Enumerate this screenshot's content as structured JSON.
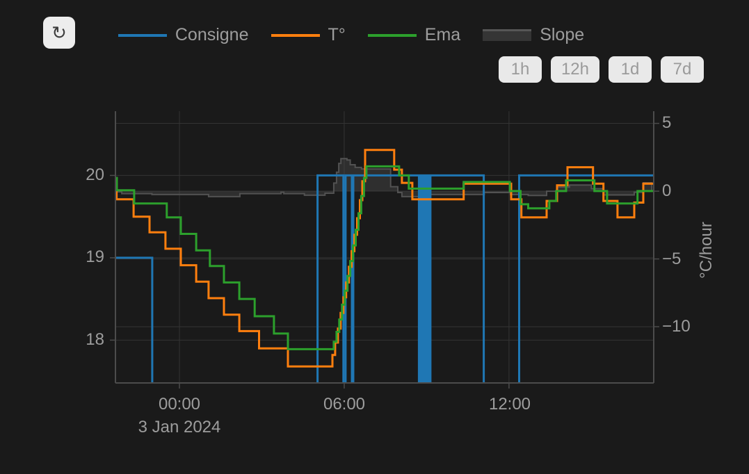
{
  "toolbar": {
    "refresh_icon": "↻"
  },
  "legend": {
    "items": [
      {
        "label": "Consigne",
        "color": "#1f77b4",
        "type": "line",
        "swatch_style": "width:70px;height:4px;background:#1f77b4"
      },
      {
        "label": "T°",
        "color": "#ff7f0e",
        "type": "line",
        "swatch_style": "width:70px;height:4px;background:#ff7f0e"
      },
      {
        "label": "Ema",
        "color": "#2ca02c",
        "type": "line",
        "swatch_style": "width:70px;height:4px;background:#2ca02c"
      },
      {
        "label": "Slope",
        "color": "#565656",
        "type": "area",
        "swatch_style": "width:70px;height:14px;background:#353535;border-top:3px solid #565656"
      }
    ]
  },
  "range_buttons": [
    {
      "label": "1h"
    },
    {
      "label": "12h"
    },
    {
      "label": "1d"
    },
    {
      "label": "7d"
    }
  ],
  "chart_data": {
    "type": "line",
    "description": "Thermostat history: setpoint (Consigne), temperature (T°), exponential moving average (Ema) on left °C axis; heating/cooling rate (Slope) as filled area on right °C/hour axis. Step (hv) interpolation.",
    "layout": {
      "plot": {
        "l": 166,
        "t": 160,
        "r": 940,
        "b": 551
      },
      "grid_color": "#343434",
      "axis_color": "#4c4c4c",
      "background": "#1a1a1a",
      "legend_position": "top-center"
    },
    "x_axis": {
      "range": [
        -2.33,
        17.27
      ],
      "unit": "hours from 2024-01-03 00:00",
      "date_label": "3 Jan 2024",
      "ticks": [
        {
          "t": 0,
          "label": "00:00"
        },
        {
          "t": 6,
          "label": "06:00"
        },
        {
          "t": 12,
          "label": "12:00"
        }
      ]
    },
    "y_left": {
      "range": [
        17.48,
        20.78
      ],
      "unit": "°C",
      "ticks": [
        {
          "v": 20,
          "label": "20"
        },
        {
          "v": 19,
          "label": "19"
        },
        {
          "v": 18,
          "label": "18"
        }
      ]
    },
    "y_right": {
      "range": [
        -14.15,
        5.9
      ],
      "title": "°C/hour",
      "ticks": [
        {
          "v": 5,
          "label": "5"
        },
        {
          "v": 0,
          "label": "0"
        },
        {
          "v": -5,
          "label": "−5"
        },
        {
          "v": -10,
          "label": "−10"
        }
      ]
    },
    "series": [
      {
        "name": "Consigne",
        "axis": "left",
        "color": "#1f77b4",
        "width": 3,
        "mode": "steps",
        "points": [
          [
            -2.33,
            19.0
          ],
          [
            -0.99,
            17.0
          ],
          [
            5.03,
            20.0
          ],
          [
            5.97,
            17.0
          ],
          [
            6.05,
            20.0
          ],
          [
            6.28,
            17.0
          ],
          [
            6.33,
            20.0
          ],
          [
            8.72,
            17.0
          ],
          [
            8.76,
            20.0
          ],
          [
            8.82,
            17.0
          ],
          [
            8.86,
            20.0
          ],
          [
            8.92,
            17.0
          ],
          [
            8.96,
            20.0
          ],
          [
            9.01,
            17.0
          ],
          [
            9.05,
            20.0
          ],
          [
            9.1,
            17.0
          ],
          [
            9.14,
            20.0
          ],
          [
            11.08,
            17.0
          ],
          [
            12.37,
            20.0
          ]
        ]
      },
      {
        "name": "T°",
        "axis": "left",
        "color": "#ff7f0e",
        "width": 3,
        "mode": "steps",
        "points": [
          [
            -2.33,
            19.92
          ],
          [
            -2.29,
            19.71
          ],
          [
            -1.67,
            19.5
          ],
          [
            -1.09,
            19.31
          ],
          [
            -0.51,
            19.11
          ],
          [
            0.05,
            18.91
          ],
          [
            0.61,
            18.71
          ],
          [
            1.06,
            18.51
          ],
          [
            1.62,
            18.31
          ],
          [
            2.18,
            18.11
          ],
          [
            2.9,
            17.9
          ],
          [
            3.95,
            17.68
          ],
          [
            5.57,
            17.82
          ],
          [
            5.67,
            17.97
          ],
          [
            5.77,
            18.14
          ],
          [
            5.87,
            18.33
          ],
          [
            5.97,
            18.52
          ],
          [
            6.07,
            18.7
          ],
          [
            6.17,
            18.89
          ],
          [
            6.27,
            19.08
          ],
          [
            6.37,
            19.28
          ],
          [
            6.47,
            19.48
          ],
          [
            6.57,
            19.7
          ],
          [
            6.66,
            19.93
          ],
          [
            6.76,
            20.31
          ],
          [
            7.82,
            20.07
          ],
          [
            8.1,
            19.91
          ],
          [
            8.48,
            19.71
          ],
          [
            10.35,
            19.9
          ],
          [
            12.08,
            19.71
          ],
          [
            12.45,
            19.49
          ],
          [
            13.37,
            19.69
          ],
          [
            13.75,
            19.88
          ],
          [
            14.13,
            20.1
          ],
          [
            15.06,
            19.9
          ],
          [
            15.44,
            19.69
          ],
          [
            15.95,
            19.49
          ],
          [
            16.56,
            19.67
          ],
          [
            16.89,
            19.9
          ]
        ]
      },
      {
        "name": "Ema",
        "axis": "left",
        "color": "#2ca02c",
        "width": 3,
        "mode": "steps",
        "points": [
          [
            -2.33,
            19.97
          ],
          [
            -2.28,
            19.82
          ],
          [
            -1.65,
            19.66
          ],
          [
            -0.46,
            19.49
          ],
          [
            0.05,
            19.29
          ],
          [
            0.61,
            19.09
          ],
          [
            1.11,
            18.9
          ],
          [
            1.62,
            18.7
          ],
          [
            2.18,
            18.5
          ],
          [
            2.74,
            18.29
          ],
          [
            3.44,
            18.08
          ],
          [
            3.95,
            17.89
          ],
          [
            5.62,
            17.98
          ],
          [
            5.72,
            18.1
          ],
          [
            5.82,
            18.25
          ],
          [
            5.92,
            18.43
          ],
          [
            6.02,
            18.6
          ],
          [
            6.12,
            18.78
          ],
          [
            6.22,
            18.96
          ],
          [
            6.32,
            19.15
          ],
          [
            6.42,
            19.34
          ],
          [
            6.52,
            19.54
          ],
          [
            6.62,
            19.75
          ],
          [
            6.72,
            19.97
          ],
          [
            6.81,
            20.11
          ],
          [
            8.0,
            20.0
          ],
          [
            8.35,
            19.84
          ],
          [
            10.35,
            19.92
          ],
          [
            12.03,
            19.81
          ],
          [
            12.42,
            19.65
          ],
          [
            12.7,
            19.6
          ],
          [
            13.47,
            19.69
          ],
          [
            13.72,
            19.81
          ],
          [
            14.08,
            19.94
          ],
          [
            15.11,
            19.81
          ],
          [
            15.57,
            19.66
          ],
          [
            16.68,
            19.81
          ]
        ]
      },
      {
        "name": "Slope",
        "axis": "right",
        "color": "#525252",
        "width": 2,
        "mode": "steps",
        "fill": "rgba(82,82,82,0.38)",
        "fill_to": 0,
        "points": [
          [
            -2.33,
            -0.05
          ],
          [
            -2.1,
            -0.18
          ],
          [
            -1.0,
            -0.25
          ],
          [
            1.06,
            -0.4
          ],
          [
            2.2,
            -0.18
          ],
          [
            3.7,
            -0.08
          ],
          [
            3.8,
            -0.18
          ],
          [
            4.55,
            -0.3
          ],
          [
            5.3,
            -0.15
          ],
          [
            5.62,
            0.6
          ],
          [
            5.72,
            1.4
          ],
          [
            5.8,
            2.05
          ],
          [
            5.88,
            2.4
          ],
          [
            6.1,
            2.3
          ],
          [
            6.22,
            1.95
          ],
          [
            6.4,
            1.75
          ],
          [
            6.63,
            1.64
          ],
          [
            7.69,
            0.33
          ],
          [
            7.95,
            -0.1
          ],
          [
            8.1,
            -0.4
          ],
          [
            8.85,
            -0.25
          ],
          [
            11.1,
            -0.1
          ],
          [
            12.05,
            -0.25
          ],
          [
            12.7,
            -0.32
          ],
          [
            13.37,
            0.0
          ],
          [
            13.75,
            0.3
          ],
          [
            14.2,
            0.45
          ],
          [
            15.0,
            0.18
          ],
          [
            15.44,
            -0.28
          ],
          [
            16.56,
            -0.08
          ],
          [
            16.89,
            0.62
          ],
          [
            17.2,
            0.02
          ]
        ]
      }
    ]
  }
}
